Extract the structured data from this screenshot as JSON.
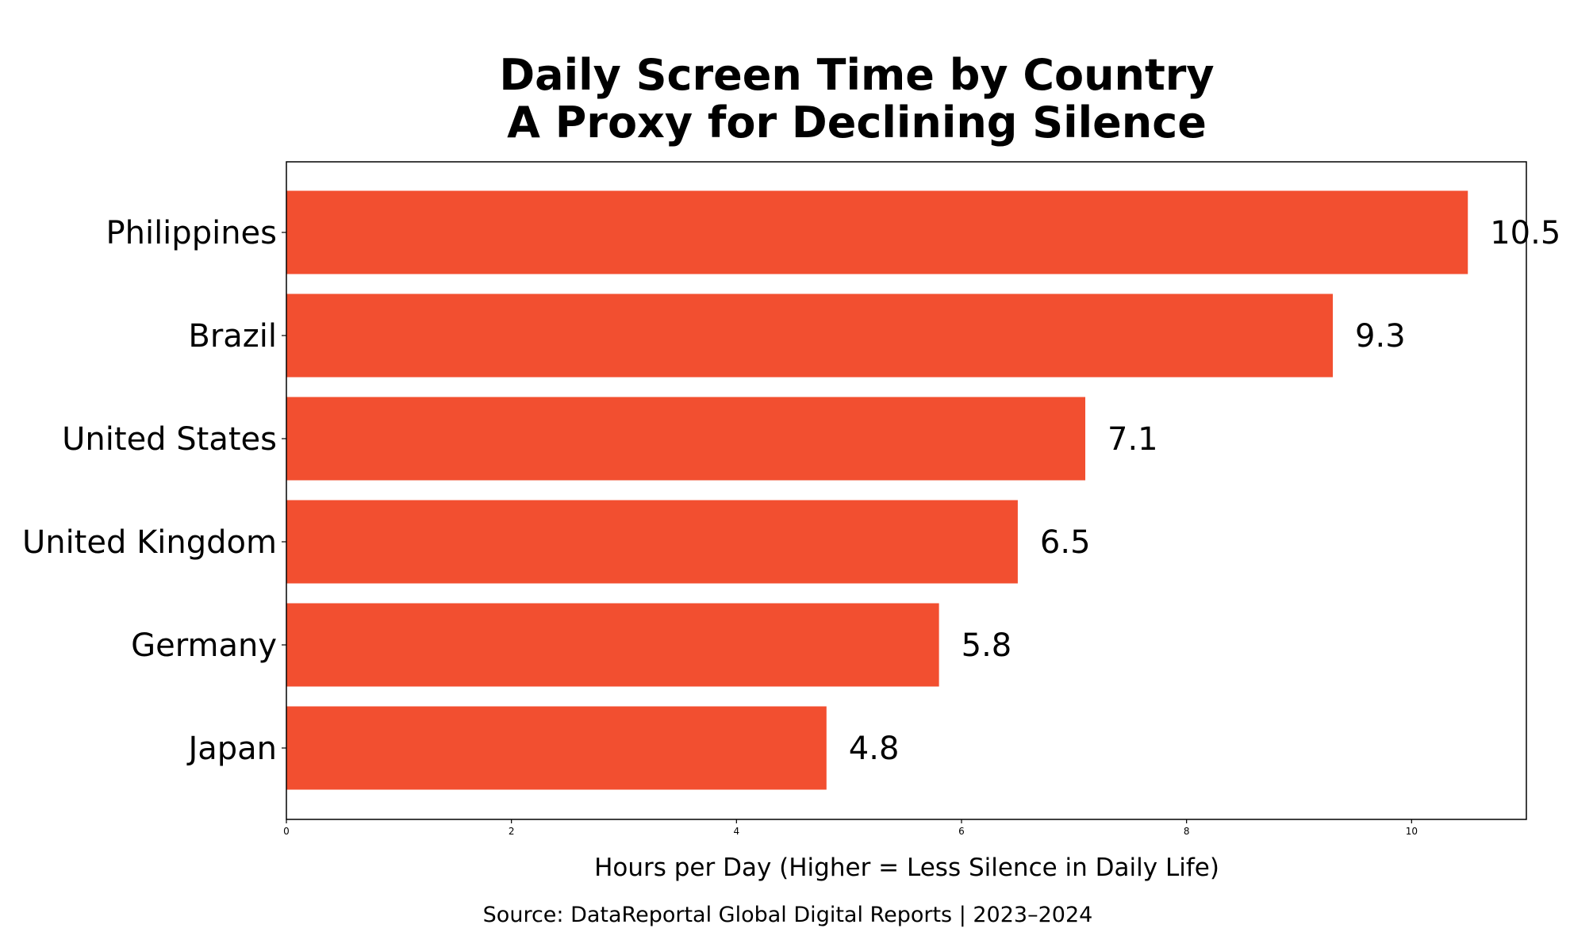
{
  "chart_data": {
    "type": "bar",
    "orientation": "horizontal",
    "title": [
      "Daily Screen Time by Country",
      "A Proxy for Declining Silence"
    ],
    "categories": [
      "Philippines",
      "Brazil",
      "United States",
      "United Kingdom",
      "Germany",
      "Japan"
    ],
    "values": [
      10.5,
      9.3,
      7.1,
      6.5,
      5.8,
      4.8
    ],
    "value_labels": [
      "10.5",
      "9.3",
      "7.1",
      "6.5",
      "5.8",
      "4.8"
    ],
    "xlabel": "Hours per Day (Higher = Less Silence in Daily Life)",
    "ylabel": "",
    "xlim": [
      0,
      11.02
    ],
    "xticks": [
      0,
      2,
      4,
      6,
      8,
      10
    ],
    "xtick_labels": [
      "0",
      "2",
      "4",
      "6",
      "8",
      "10"
    ],
    "grid": false,
    "bar_color": "#f24f30",
    "source": "Source: DataReportal Global Digital Reports | 2023–2024"
  }
}
